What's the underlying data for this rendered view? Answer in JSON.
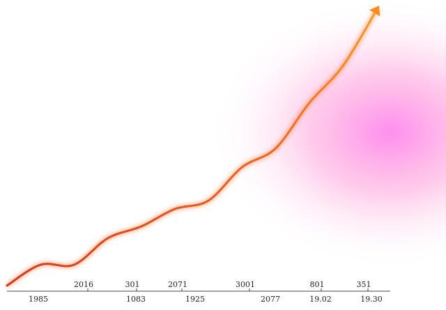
{
  "chart_data": {
    "type": "line",
    "values": [
      0,
      30,
      30,
      68,
      85,
      110,
      122,
      170,
      197,
      262,
      315,
      395
    ],
    "x_labels_top": [
      "2016",
      "301",
      "2071",
      "3001",
      "801",
      "351"
    ],
    "x_labels_bottom": [
      "1985",
      "1083",
      "1925",
      "2077",
      "19.02",
      "19.30"
    ]
  }
}
